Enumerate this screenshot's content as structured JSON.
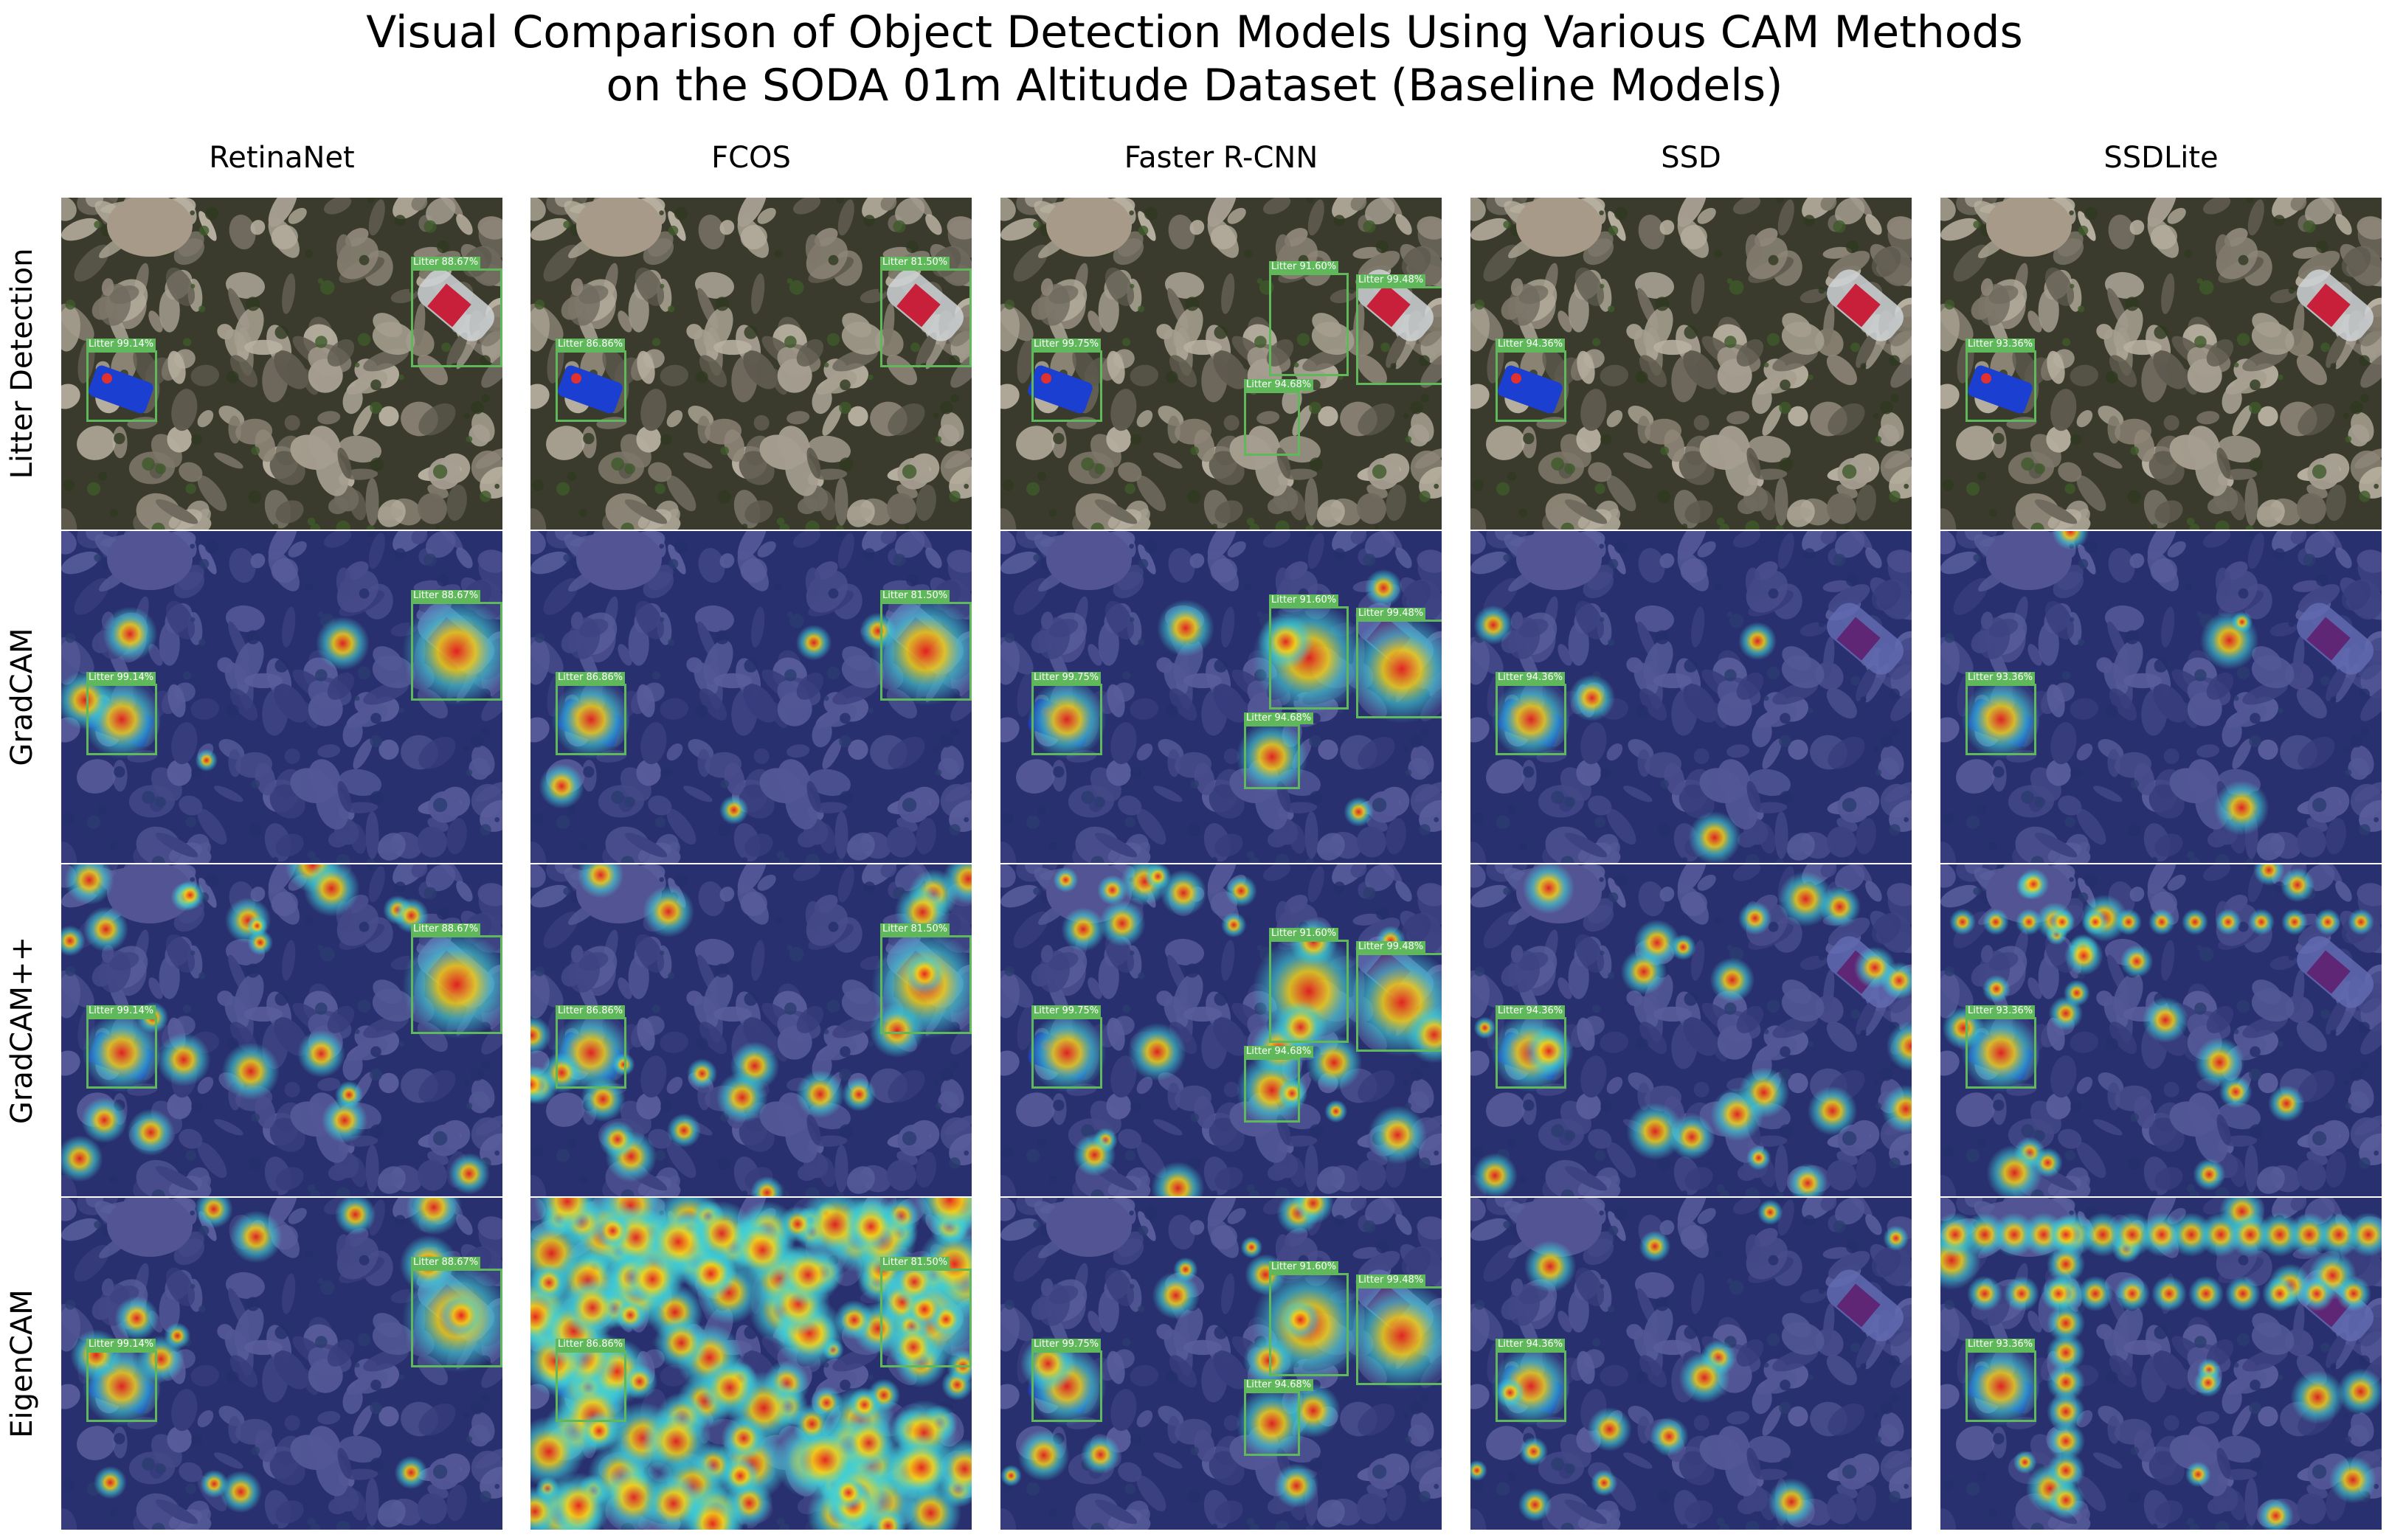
{
  "figure": {
    "title_line1": "Visual Comparison of Object Detection Models Using Various CAM Methods",
    "title_line2": "on the SODA 01m Altitude Dataset (Baseline Models)"
  },
  "models": [
    {
      "name": "RetinaNet",
      "detections": [
        {
          "label": "Litter 99.14%",
          "object": "blue-can"
        },
        {
          "label": "Litter 88.67%",
          "object": "bottle"
        }
      ]
    },
    {
      "name": "FCOS",
      "detections": [
        {
          "label": "Litter 86.86%",
          "object": "blue-can"
        },
        {
          "label": "Litter 81.50%",
          "object": "bottle"
        }
      ]
    },
    {
      "name": "Faster R-CNN",
      "detections": [
        {
          "label": "Litter 99.75%",
          "object": "blue-can"
        },
        {
          "label": "Litter 91.60%",
          "object": "rock-region"
        },
        {
          "label": "Litter 99.48%",
          "object": "bottle"
        },
        {
          "label": "Litter 94.68%",
          "object": "small-region"
        }
      ]
    },
    {
      "name": "SSD",
      "detections": [
        {
          "label": "Litter 94.36%",
          "object": "blue-can"
        }
      ]
    },
    {
      "name": "SSDLite",
      "detections": [
        {
          "label": "Litter 93.36%",
          "object": "blue-can"
        }
      ]
    }
  ],
  "rows": [
    "Litter Detection",
    "GradCAM",
    "GradCAM++",
    "EigenCAM"
  ],
  "colors": {
    "box": "#5fb85a",
    "heatmap_low": "#1f2a9a",
    "heatmap_mid": "#3fd0d8",
    "heatmap_high": "#e8201e",
    "can_blue": "#1b3fd0",
    "bottle_red": "#c8203a"
  }
}
